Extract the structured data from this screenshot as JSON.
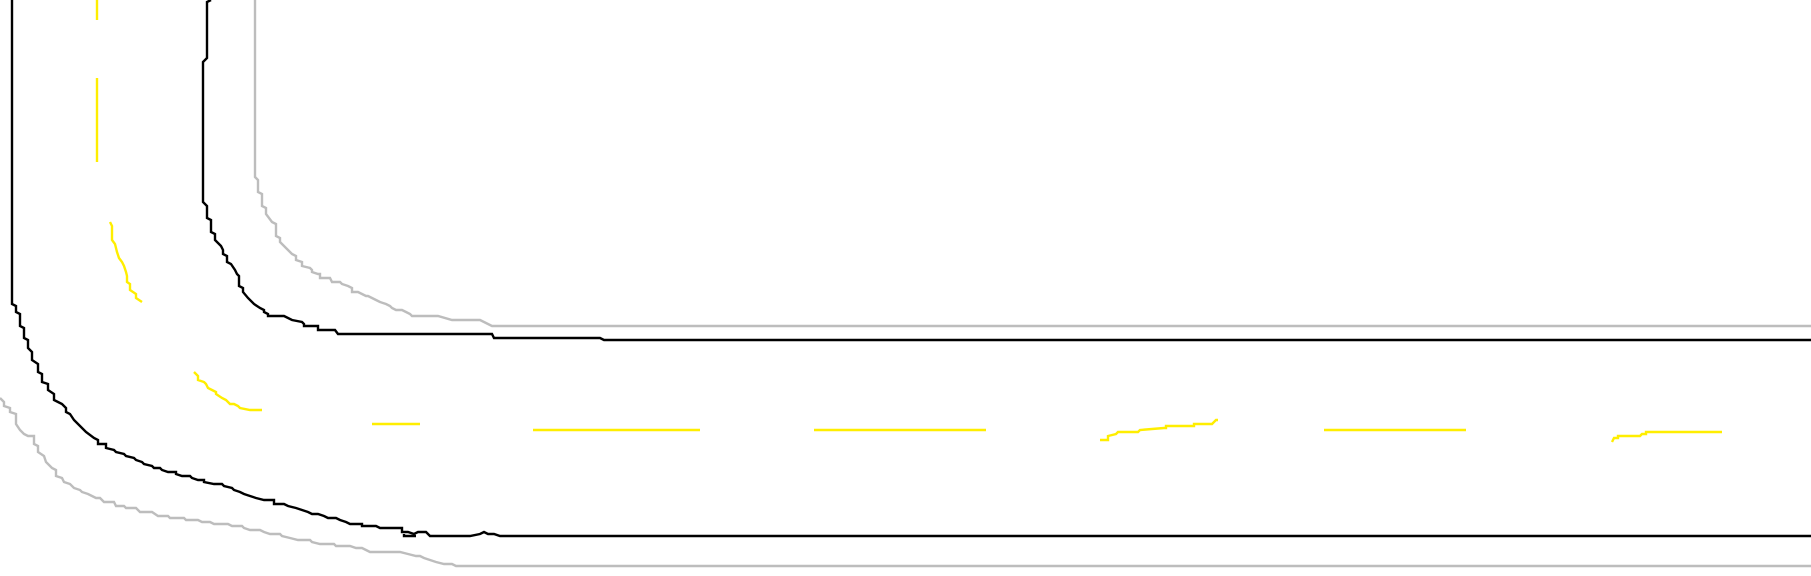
{
  "map": {
    "background_color": "#ffffff",
    "colors": {
      "road_edge": "#000000",
      "curb": "#bdbdbd",
      "lane_divider": "#ffee00"
    },
    "features": [
      "road-edge-inner",
      "road-edge-outer",
      "curb-inner",
      "curb-outer",
      "lane-divider-dashed"
    ]
  }
}
